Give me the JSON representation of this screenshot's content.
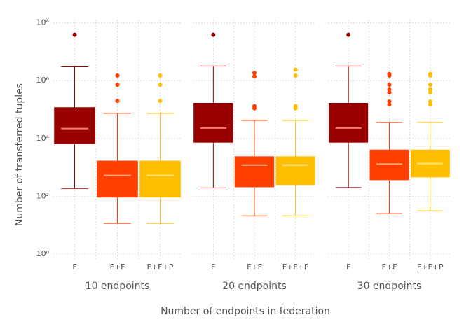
{
  "chart_data": {
    "type": "box",
    "x_label": "Number of endpoints in federation",
    "y_label": "Number of transferred tuples",
    "log_y": true,
    "grid": true,
    "ylim": [
      0.6,
      130000000
    ],
    "yticks": [
      {
        "value": 1,
        "label": "10⁰"
      },
      {
        "value": 100,
        "label": "10²"
      },
      {
        "value": 10000,
        "label": "10⁴"
      },
      {
        "value": 1000000,
        "label": "10⁶"
      },
      {
        "value": 100000000,
        "label": "10⁸"
      }
    ],
    "colors": [
      "#990000",
      "#ff4000",
      "#ffbf00"
    ],
    "median_colors": [
      "#f08070",
      "#ffaa80",
      "#ffe680"
    ],
    "groups": [
      {
        "name": "10 endpoints",
        "categories": [
          "F",
          "F+F",
          "F+F+P"
        ],
        "boxes": [
          {
            "whislo": 185,
            "q1": 6400,
            "med": 22000,
            "q3": 120000,
            "whishi": 3000000,
            "fliers": [
              39000000
            ]
          },
          {
            "whislo": 11.5,
            "q1": 90,
            "med": 525,
            "q3": 1700,
            "whishi": 74000,
            "fliers": [
              1500000,
              720000,
              200000
            ]
          },
          {
            "whislo": 11.5,
            "q1": 90,
            "med": 525,
            "q3": 1700,
            "whishi": 74000,
            "fliers": [
              1500000,
              720000,
              200000
            ]
          }
        ]
      },
      {
        "name": "20 endpoints",
        "categories": [
          "F",
          "F+F",
          "F+F+P"
        ],
        "boxes": [
          {
            "whislo": 195,
            "q1": 7200,
            "med": 23000,
            "q3": 170000,
            "whishi": 3200000,
            "fliers": [
              39000000
            ]
          },
          {
            "whislo": 21,
            "q1": 205,
            "med": 1200,
            "q3": 2400,
            "whishi": 42000,
            "fliers": [
              1850000,
              1400000,
              130000,
              110000
            ]
          },
          {
            "whislo": 21,
            "q1": 245,
            "med": 1200,
            "q3": 2400,
            "whishi": 42000,
            "fliers": [
              2400000,
              1500000,
              130000,
              110000
            ]
          }
        ]
      },
      {
        "name": "30 endpoints",
        "categories": [
          "F",
          "F+F",
          "F+F+P"
        ],
        "boxes": [
          {
            "whislo": 200,
            "q1": 7200,
            "med": 23000,
            "q3": 170000,
            "whishi": 3200000,
            "fliers": [
              39000000
            ]
          },
          {
            "whislo": 25,
            "q1": 360,
            "med": 1300,
            "q3": 4100,
            "whishi": 36000,
            "fliers": [
              1700000,
              1500000,
              720000,
              490000,
              390000,
              190000,
              150000
            ]
          },
          {
            "whislo": 31,
            "q1": 450,
            "med": 1350,
            "q3": 4100,
            "whishi": 36000,
            "fliers": [
              1700000,
              1500000,
              720000,
              490000,
              390000,
              190000,
              150000
            ]
          }
        ]
      }
    ]
  }
}
